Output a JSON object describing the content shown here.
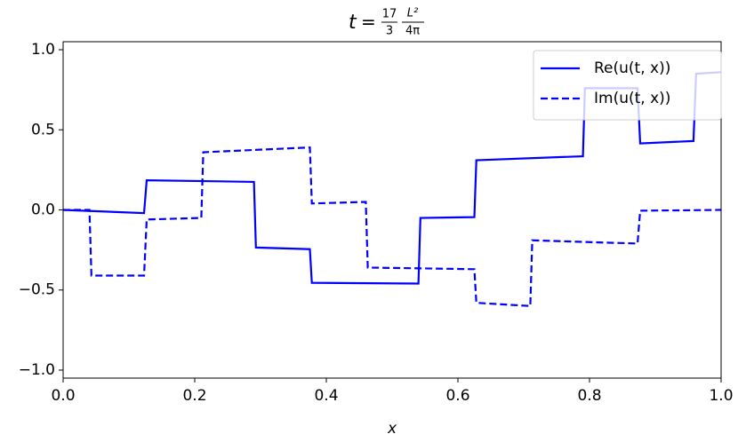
{
  "chart_data": {
    "type": "line",
    "title": {
      "lhs": "t",
      "eq": "=",
      "frac1_num": "17",
      "frac1_den": "3",
      "frac2_num": "L²",
      "frac2_den": "4π"
    },
    "x_label": "x",
    "series": [
      {
        "name": "Re(u(t, x))",
        "color": "#0000ff",
        "dash": "solid",
        "x": [
          0,
          0.123,
          0.127,
          0.29,
          0.293,
          0.375,
          0.378,
          0.54,
          0.543,
          0.625,
          0.628,
          0.79,
          0.793,
          0.873,
          0.877,
          0.958,
          0.962,
          1.0
        ],
        "values": [
          0,
          -0.02,
          0.185,
          0.175,
          -0.235,
          -0.245,
          -0.455,
          -0.46,
          -0.05,
          -0.045,
          0.31,
          0.335,
          0.76,
          0.76,
          0.415,
          0.43,
          0.85,
          0.86
        ]
      },
      {
        "name": "Im(u(t, x))",
        "color": "#0000ff",
        "dash": "dashed",
        "x": [
          0,
          0.04,
          0.043,
          0.123,
          0.127,
          0.21,
          0.213,
          0.375,
          0.378,
          0.46,
          0.463,
          0.625,
          0.628,
          0.71,
          0.713,
          0.873,
          0.877,
          1.0
        ],
        "values": [
          0,
          0,
          -0.41,
          -0.41,
          -0.06,
          -0.05,
          0.36,
          0.39,
          0.04,
          0.05,
          -0.36,
          -0.37,
          -0.58,
          -0.6,
          -0.19,
          -0.21,
          -0.005,
          0
        ]
      }
    ],
    "xlim": [
      0,
      1
    ],
    "ylim": [
      -1.05,
      1.05
    ],
    "xticks": [
      {
        "value": 0,
        "label": "0.0"
      },
      {
        "value": 0.2,
        "label": "0.2"
      },
      {
        "value": 0.4,
        "label": "0.4"
      },
      {
        "value": 0.6,
        "label": "0.6"
      },
      {
        "value": 0.8,
        "label": "0.8"
      },
      {
        "value": 1,
        "label": "1.0"
      }
    ],
    "yticks": [
      {
        "value": -1,
        "label": "−1.0"
      },
      {
        "value": -0.5,
        "label": "−0.5"
      },
      {
        "value": 0,
        "label": "0.0"
      },
      {
        "value": 0.5,
        "label": "0.5"
      },
      {
        "value": 1,
        "label": "1.0"
      }
    ],
    "legend": "upper right",
    "grid": false
  }
}
